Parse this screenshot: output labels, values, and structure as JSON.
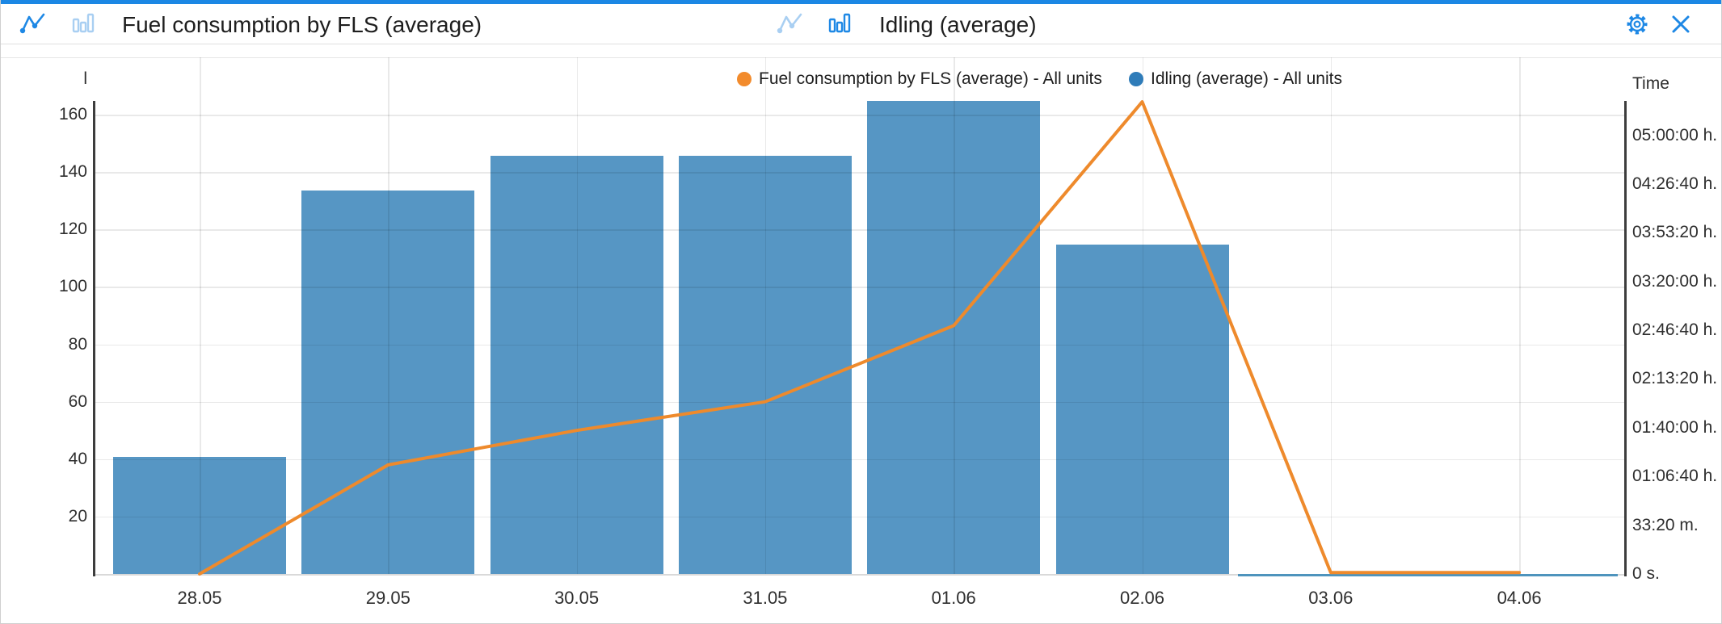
{
  "colors": {
    "accent_blue": "#1b87e4",
    "icon_active_blue": "#1e88e5",
    "icon_inactive_blue": "#a9cff2",
    "bar_fill": "#5696c4",
    "line_orange": "#ee8a2c",
    "legend_fuel_dot": "#f28b2c",
    "legend_idling_dot": "#2f7cb9",
    "zero_line_blue": "#4e94bd",
    "grid": "#e6e6e6",
    "axis_line": "#3d3d3d",
    "title_text": "#1e1e1e",
    "axis_text": "#2e2e2e"
  },
  "header": {
    "left_widget": {
      "title": "Fuel consumption by FLS (average)",
      "line_toggle_active": true,
      "bar_toggle_active": false
    },
    "right_widget": {
      "title": "Idling (average)",
      "line_toggle_active": false,
      "bar_toggle_active": true
    },
    "actions": {
      "settings_icon": "gear-icon",
      "close_icon": "close-icon"
    }
  },
  "legend": {
    "items": [
      {
        "label": "Fuel consumption by FLS (average) - All units",
        "color": "#f28b2c",
        "series": "fuel-line"
      },
      {
        "label": "Idling (average) - All units",
        "color": "#2f7cb9",
        "series": "idling-bars"
      }
    ]
  },
  "chart_data": {
    "type": "combo",
    "categories": [
      "28.05",
      "29.05",
      "30.05",
      "31.05",
      "01.06",
      "02.06",
      "03.06",
      "04.06"
    ],
    "series": [
      {
        "name": "Fuel consumption by FLS (average) - All units",
        "type": "line",
        "axis": "left",
        "unit": "l",
        "color": "#ee8a2c",
        "values": [
          0,
          38,
          50,
          60,
          86.5,
          164.5,
          0.5,
          0.5
        ]
      },
      {
        "name": "Idling (average) - All units",
        "type": "bar",
        "axis": "right",
        "unit": "seconds",
        "color": "#5696c4",
        "values_seconds": [
          4800,
          15750,
          17150,
          17160,
          19400,
          13500,
          0,
          0
        ],
        "zero_line_span_categories": [
          "03.06",
          "04.06"
        ]
      }
    ],
    "left_axis": {
      "label": "l",
      "min": 0,
      "max": 180,
      "ticks": [
        20,
        40,
        60,
        80,
        100,
        120,
        140,
        160
      ]
    },
    "right_axis": {
      "label": "Time",
      "min": 0,
      "max": 21200,
      "ticks": [
        {
          "seconds": 0,
          "label": "0 s."
        },
        {
          "seconds": 2000,
          "label": "33:20 m."
        },
        {
          "seconds": 4000,
          "label": "01:06:40 h."
        },
        {
          "seconds": 6000,
          "label": "01:40:00 h."
        },
        {
          "seconds": 8000,
          "label": "02:13:20 h."
        },
        {
          "seconds": 10000,
          "label": "02:46:40 h."
        },
        {
          "seconds": 12000,
          "label": "03:20:00 h."
        },
        {
          "seconds": 14000,
          "label": "03:53:20 h."
        },
        {
          "seconds": 16000,
          "label": "04:26:40 h."
        },
        {
          "seconds": 18000,
          "label": "05:00:00 h."
        }
      ],
      "grid": false
    },
    "grid_on_left_ticks": true,
    "legend_position": "top"
  }
}
